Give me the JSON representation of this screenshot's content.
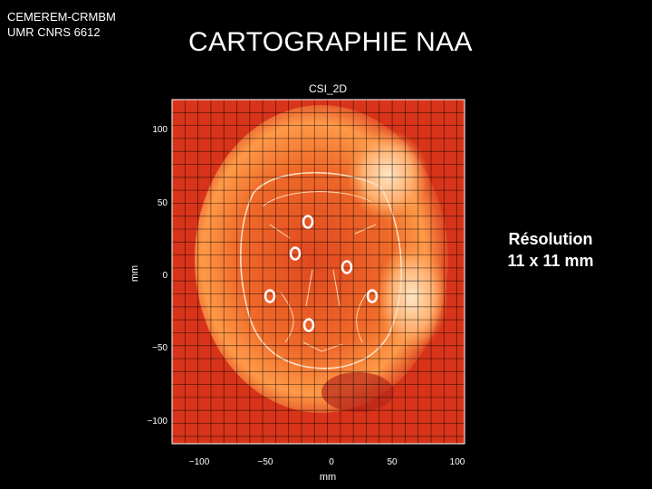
{
  "header": {
    "affiliation_line1": "CEMEREM-CRMBM",
    "affiliation_line2": "UMR CNRS 6612"
  },
  "slide": {
    "title": "CARTOGRAPHIE NAA",
    "resolution_line1": "Résolution",
    "resolution_line2": "11 x 11 mm"
  },
  "map": {
    "plot_title": "CSI_2D",
    "x_axis_label": "mm",
    "y_axis_label": "mm",
    "x_ticks": [
      "−100",
      "−50",
      "0",
      "50",
      "100"
    ],
    "y_ticks": [
      "100",
      "50",
      "0",
      "−50",
      "−100"
    ],
    "colors": {
      "background_red": "#d8341a",
      "hot_orange": "#ff9a40",
      "marker": "#ffffff"
    }
  }
}
